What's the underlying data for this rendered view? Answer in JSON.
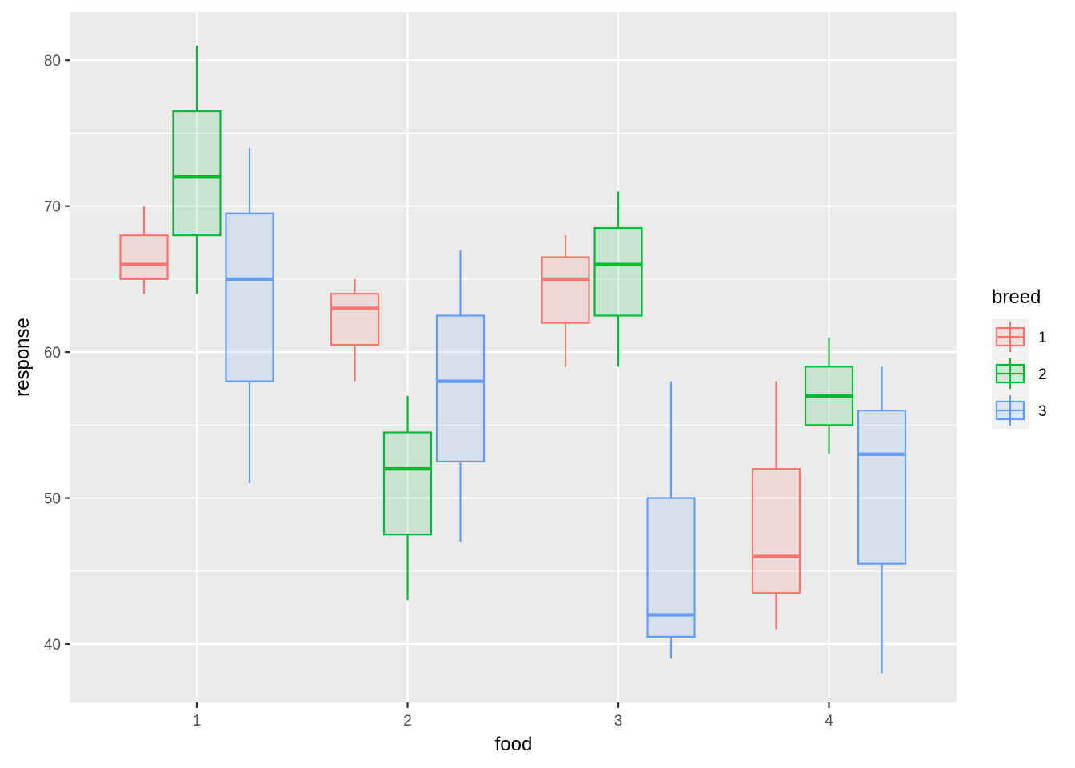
{
  "chart_data": {
    "type": "boxplot",
    "xlabel": "food",
    "ylabel": "response",
    "categories": [
      "1",
      "2",
      "3",
      "4"
    ],
    "ylim": [
      36,
      83.3
    ],
    "yticks": [
      40,
      50,
      60,
      70,
      80
    ],
    "grid": true,
    "legend": {
      "title": "breed",
      "position": "right"
    },
    "series": [
      {
        "name": "1",
        "color": "#F8766D",
        "boxes": [
          {
            "category": "1",
            "min": 64,
            "q1": 65,
            "median": 66,
            "q3": 68,
            "max": 70
          },
          {
            "category": "2",
            "min": 58,
            "q1": 60.5,
            "median": 63,
            "q3": 64,
            "max": 65
          },
          {
            "category": "3",
            "min": 59,
            "q1": 62,
            "median": 65,
            "q3": 66.5,
            "max": 68
          },
          {
            "category": "4",
            "min": 41,
            "q1": 43.5,
            "median": 46,
            "q3": 52,
            "max": 58
          }
        ]
      },
      {
        "name": "2",
        "color": "#00BA38",
        "boxes": [
          {
            "category": "1",
            "min": 64,
            "q1": 68,
            "median": 72,
            "q3": 76.5,
            "max": 81
          },
          {
            "category": "2",
            "min": 43,
            "q1": 47.5,
            "median": 52,
            "q3": 54.5,
            "max": 57
          },
          {
            "category": "3",
            "min": 59,
            "q1": 62.5,
            "median": 66,
            "q3": 68.5,
            "max": 71
          },
          {
            "category": "4",
            "min": 53,
            "q1": 55,
            "median": 57,
            "q3": 59,
            "max": 61
          }
        ]
      },
      {
        "name": "3",
        "color": "#619CFF",
        "boxes": [
          {
            "category": "1",
            "min": 51,
            "q1": 58,
            "median": 65,
            "q3": 69.5,
            "max": 74
          },
          {
            "category": "2",
            "min": 47,
            "q1": 52.5,
            "median": 58,
            "q3": 62.5,
            "max": 67
          },
          {
            "category": "3",
            "min": 39,
            "q1": 40.5,
            "median": 42,
            "q3": 50,
            "max": 58
          },
          {
            "category": "4",
            "min": 38,
            "q1": 45.5,
            "median": 53,
            "q3": 56,
            "max": 59
          }
        ]
      }
    ]
  },
  "colors": {
    "panel_background": "#EBEBEB",
    "grid_line": "#FFFFFF"
  }
}
